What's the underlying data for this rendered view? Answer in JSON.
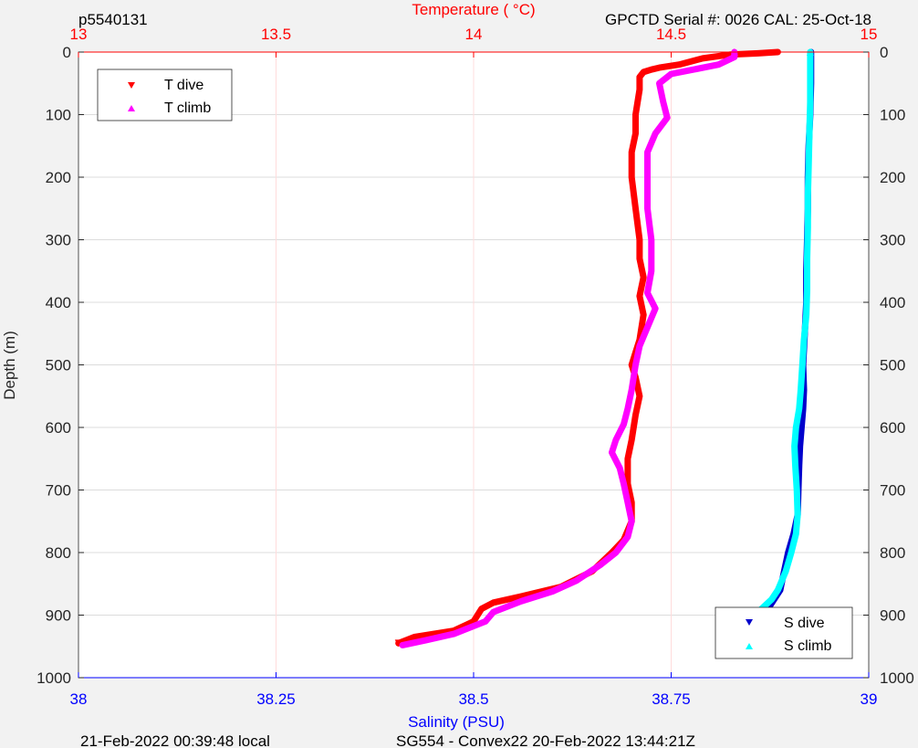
{
  "header": {
    "profile_id": "p5540131",
    "sensor_info": "GPCTD Serial #: 0026 CAL: 25-Oct-18"
  },
  "footer": {
    "local_time": "21-Feb-2022 00:39:48 local",
    "mission": "SG554 - Convex22 20-Feb-2022 13:44:21Z"
  },
  "colors": {
    "temperature_axis": "#ff0000",
    "salinity_axis": "#0000ff",
    "t_dive": "#ff0000",
    "t_climb": "#ff00ff",
    "s_dive": "#0000cc",
    "s_climb": "#00ffff"
  },
  "chart_data": {
    "type": "line",
    "ylabel": "Depth (m)",
    "ylim": [
      0,
      1000
    ],
    "yticks": [
      0,
      100,
      200,
      300,
      400,
      500,
      600,
      700,
      800,
      900,
      1000
    ],
    "y_reversed": true,
    "top_axis": {
      "label": "Temperature (   °C)",
      "lim": [
        13,
        15
      ],
      "ticks": [
        "13",
        "13.5",
        "14",
        "14.5",
        "15"
      ],
      "tick_values": [
        13,
        13.5,
        14,
        14.5,
        15
      ]
    },
    "bottom_axis": {
      "label": "Salinity (PSU)",
      "lim": [
        38,
        39
      ],
      "ticks": [
        "38",
        "38.25",
        "38.5",
        "38.75",
        "39"
      ],
      "tick_values": [
        38,
        38.25,
        38.5,
        38.75,
        39
      ]
    },
    "grid": true,
    "legends": [
      {
        "placement": "top-left",
        "entries": [
          "T dive",
          "T climb"
        ]
      },
      {
        "placement": "bottom-right",
        "entries": [
          "S dive",
          "S climb"
        ]
      }
    ],
    "series": [
      {
        "name": "T dive",
        "axis": "top",
        "marker": "triangle-down",
        "points": [
          [
            14.77,
            0
          ],
          [
            14.72,
            2
          ],
          [
            14.65,
            4
          ],
          [
            14.58,
            10
          ],
          [
            14.52,
            20
          ],
          [
            14.47,
            25
          ],
          [
            14.45,
            28
          ],
          [
            14.43,
            32
          ],
          [
            14.42,
            40
          ],
          [
            14.42,
            60
          ],
          [
            14.41,
            100
          ],
          [
            14.41,
            130
          ],
          [
            14.4,
            160
          ],
          [
            14.4,
            200
          ],
          [
            14.41,
            250
          ],
          [
            14.42,
            300
          ],
          [
            14.42,
            330
          ],
          [
            14.43,
            360
          ],
          [
            14.42,
            390
          ],
          [
            14.43,
            420
          ],
          [
            14.42,
            460
          ],
          [
            14.41,
            480
          ],
          [
            14.4,
            500
          ],
          [
            14.41,
            520
          ],
          [
            14.42,
            550
          ],
          [
            14.41,
            580
          ],
          [
            14.4,
            620
          ],
          [
            14.39,
            650
          ],
          [
            14.39,
            690
          ],
          [
            14.4,
            720
          ],
          [
            14.4,
            750
          ],
          [
            14.38,
            780
          ],
          [
            14.35,
            800
          ],
          [
            14.3,
            830
          ],
          [
            14.22,
            855
          ],
          [
            14.12,
            870
          ],
          [
            14.05,
            880
          ],
          [
            14.02,
            890
          ],
          [
            14.0,
            910
          ],
          [
            13.95,
            925
          ],
          [
            13.85,
            935
          ],
          [
            13.81,
            945
          ]
        ]
      },
      {
        "name": "T climb",
        "axis": "top",
        "marker": "triangle-up",
        "points": [
          [
            13.82,
            948
          ],
          [
            13.88,
            940
          ],
          [
            13.95,
            930
          ],
          [
            14.03,
            910
          ],
          [
            14.05,
            895
          ],
          [
            14.12,
            878
          ],
          [
            14.2,
            862
          ],
          [
            14.26,
            845
          ],
          [
            14.32,
            820
          ],
          [
            14.36,
            800
          ],
          [
            14.39,
            775
          ],
          [
            14.4,
            750
          ],
          [
            14.39,
            720
          ],
          [
            14.38,
            690
          ],
          [
            14.37,
            665
          ],
          [
            14.35,
            640
          ],
          [
            14.36,
            620
          ],
          [
            14.38,
            595
          ],
          [
            14.39,
            570
          ],
          [
            14.4,
            540
          ],
          [
            14.41,
            500
          ],
          [
            14.42,
            470
          ],
          [
            14.44,
            440
          ],
          [
            14.46,
            410
          ],
          [
            14.44,
            385
          ],
          [
            14.45,
            350
          ],
          [
            14.45,
            300
          ],
          [
            14.44,
            250
          ],
          [
            14.44,
            200
          ],
          [
            14.44,
            160
          ],
          [
            14.46,
            130
          ],
          [
            14.49,
            105
          ],
          [
            14.48,
            80
          ],
          [
            14.47,
            50
          ],
          [
            14.5,
            35
          ],
          [
            14.62,
            20
          ],
          [
            14.66,
            8
          ],
          [
            14.66,
            0
          ]
        ]
      },
      {
        "name": "S dive",
        "axis": "bottom",
        "marker": "triangle-down",
        "points": [
          [
            38.927,
            0
          ],
          [
            38.927,
            50
          ],
          [
            38.926,
            100
          ],
          [
            38.924,
            150
          ],
          [
            38.923,
            200
          ],
          [
            38.923,
            250
          ],
          [
            38.922,
            300
          ],
          [
            38.921,
            350
          ],
          [
            38.921,
            400
          ],
          [
            38.919,
            450
          ],
          [
            38.917,
            500
          ],
          [
            38.918,
            540
          ],
          [
            38.917,
            570
          ],
          [
            38.915,
            600
          ],
          [
            38.913,
            630
          ],
          [
            38.912,
            660
          ],
          [
            38.911,
            700
          ],
          [
            38.91,
            740
          ],
          [
            38.905,
            770
          ],
          [
            38.898,
            800
          ],
          [
            38.893,
            830
          ],
          [
            38.888,
            860
          ],
          [
            38.875,
            885
          ],
          [
            38.865,
            900
          ],
          [
            38.855,
            915
          ],
          [
            38.845,
            930
          ],
          [
            38.838,
            945
          ]
        ]
      },
      {
        "name": "S climb",
        "axis": "bottom",
        "marker": "triangle-up",
        "points": [
          [
            38.838,
            950
          ],
          [
            38.845,
            935
          ],
          [
            38.85,
            915
          ],
          [
            38.86,
            895
          ],
          [
            38.877,
            875
          ],
          [
            38.885,
            860
          ],
          [
            38.895,
            830
          ],
          [
            38.902,
            800
          ],
          [
            38.908,
            770
          ],
          [
            38.91,
            740
          ],
          [
            38.909,
            700
          ],
          [
            38.907,
            660
          ],
          [
            38.906,
            630
          ],
          [
            38.908,
            600
          ],
          [
            38.912,
            570
          ],
          [
            38.914,
            540
          ],
          [
            38.916,
            500
          ],
          [
            38.918,
            460
          ],
          [
            38.921,
            420
          ],
          [
            38.922,
            380
          ],
          [
            38.922,
            330
          ],
          [
            38.923,
            280
          ],
          [
            38.923,
            230
          ],
          [
            38.924,
            180
          ],
          [
            38.925,
            130
          ],
          [
            38.926,
            80
          ],
          [
            38.926,
            30
          ],
          [
            38.926,
            0
          ]
        ]
      }
    ]
  }
}
